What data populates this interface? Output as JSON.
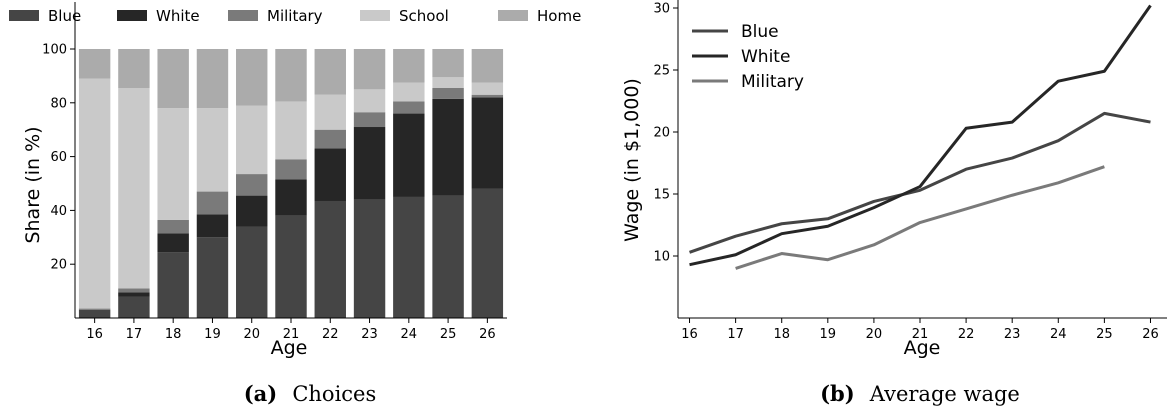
{
  "chart_data": [
    {
      "type": "bar",
      "stacked": true,
      "caption_label": "(a)",
      "caption_text": "Choices",
      "xlabel": "Age",
      "ylabel": "Share (in %)",
      "ylim": [
        0,
        100
      ],
      "yticks": [
        20,
        40,
        60,
        80,
        100
      ],
      "legend_position": "top (outside)",
      "categories": [
        "16",
        "17",
        "18",
        "19",
        "20",
        "21",
        "22",
        "23",
        "24",
        "25",
        "26"
      ],
      "series": [
        {
          "name": "Blue",
          "color": "#454545",
          "values": [
            3,
            8,
            24.5,
            30,
            34,
            38,
            43.5,
            44,
            45,
            45.5,
            48
          ]
        },
        {
          "name": "White",
          "color": "#262626",
          "values": [
            0,
            1.5,
            7,
            8.5,
            11.5,
            13.5,
            19.5,
            27,
            31,
            36,
            34
          ]
        },
        {
          "name": "Military",
          "color": "#7a7a7a",
          "values": [
            0.5,
            1.5,
            5,
            8.5,
            8,
            7.5,
            7,
            5.5,
            4.5,
            4,
            1
          ]
        },
        {
          "name": "School",
          "color": "#c9c9c9",
          "values": [
            85.5,
            74.5,
            41.5,
            31,
            25.5,
            21.5,
            13,
            8.5,
            7,
            4,
            4.5
          ]
        },
        {
          "name": "Home",
          "color": "#ababab",
          "values": [
            11,
            14.5,
            22,
            22,
            21,
            19.5,
            17,
            15,
            12.5,
            10.5,
            12.5
          ]
        }
      ]
    },
    {
      "type": "line",
      "caption_label": "(b)",
      "caption_text": "Average wage",
      "xlabel": "Age",
      "ylabel": "Wage (in $1,000)",
      "xlim": [
        15.75,
        26.25
      ],
      "ylim": [
        5,
        30
      ],
      "yticks": [
        10,
        15,
        20,
        25,
        30
      ],
      "x": [
        16,
        17,
        18,
        19,
        20,
        21,
        22,
        23,
        24,
        25,
        26
      ],
      "legend_position": "top-left",
      "series": [
        {
          "name": "Blue",
          "color": "#454545",
          "values": [
            10.3,
            11.6,
            12.6,
            13,
            14.4,
            15.3,
            17,
            17.9,
            19.3,
            21.5,
            20.8
          ]
        },
        {
          "name": "White",
          "color": "#262626",
          "values": [
            9.3,
            10.1,
            11.8,
            12.4,
            13.9,
            15.6,
            20.3,
            20.8,
            24.1,
            24.9,
            30.2
          ]
        },
        {
          "name": "Military",
          "color": "#7a7a7a",
          "values": [
            null,
            9,
            10.2,
            9.7,
            10.9,
            12.7,
            13.8,
            14.9,
            15.9,
            17.2,
            null
          ]
        }
      ]
    }
  ]
}
